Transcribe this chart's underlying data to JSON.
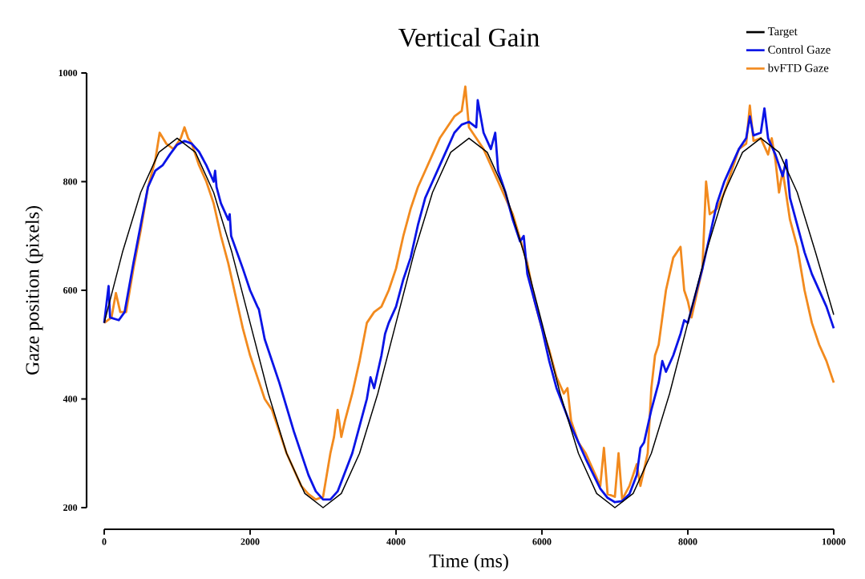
{
  "chart_data": {
    "type": "line",
    "title": "Vertical Gain",
    "xlabel": "Time (ms)",
    "ylabel": "Gaze position (pixels)",
    "xlim": [
      0,
      10000
    ],
    "ylim": [
      200,
      1000
    ],
    "xticks": [
      0,
      2000,
      4000,
      6000,
      8000,
      10000
    ],
    "yticks": [
      200,
      400,
      600,
      800,
      1000
    ],
    "legend": "top right",
    "grid": false,
    "marker": "none",
    "line_style": "solid",
    "series": [
      {
        "name": "Target",
        "color": "#000000",
        "x": [
          0,
          250,
          500,
          750,
          1000,
          1250,
          1500,
          1750,
          2000,
          2250,
          2500,
          2750,
          3000,
          3250,
          3500,
          3750,
          4000,
          4250,
          4500,
          4750,
          5000,
          5250,
          5500,
          5750,
          6000,
          6250,
          6500,
          6750,
          7000,
          7250,
          7500,
          7750,
          8000,
          8250,
          8500,
          8750,
          9000,
          9250,
          9500,
          9750,
          10000
        ],
        "values": [
          540,
          670,
          780,
          854,
          880,
          854,
          780,
          670,
          540,
          410,
          300,
          226,
          200,
          226,
          300,
          410,
          540,
          670,
          780,
          854,
          880,
          854,
          780,
          670,
          540,
          410,
          300,
          226,
          200,
          226,
          300,
          410,
          540,
          670,
          780,
          854,
          880,
          854,
          780,
          670,
          555
        ]
      },
      {
        "name": "Control Gaze",
        "color": "#0a14e6",
        "x": [
          0,
          60,
          80,
          200,
          280,
          400,
          500,
          600,
          700,
          800,
          900,
          1000,
          1100,
          1200,
          1300,
          1400,
          1500,
          1520,
          1540,
          1600,
          1700,
          1720,
          1740,
          1900,
          2000,
          2100,
          2120,
          2200,
          2400,
          2600,
          2800,
          2900,
          3000,
          3100,
          3200,
          3300,
          3400,
          3500,
          3600,
          3650,
          3700,
          3800,
          3850,
          3900,
          4000,
          4100,
          4200,
          4300,
          4400,
          4500,
          4600,
          4700,
          4800,
          4900,
          5000,
          5100,
          5120,
          5200,
          5300,
          5360,
          5400,
          5500,
          5600,
          5700,
          5750,
          5800,
          5900,
          6000,
          6100,
          6200,
          6400,
          6600,
          6800,
          6900,
          7000,
          7100,
          7200,
          7300,
          7350,
          7400,
          7500,
          7600,
          7650,
          7700,
          7800,
          7900,
          7950,
          8000,
          8100,
          8200,
          8300,
          8400,
          8500,
          8600,
          8700,
          8800,
          8850,
          8900,
          9000,
          9050,
          9100,
          9200,
          9300,
          9350,
          9400,
          9500,
          9600,
          9700,
          9800,
          9900,
          10000
        ],
        "values": [
          540,
          608,
          550,
          545,
          560,
          650,
          720,
          790,
          820,
          830,
          850,
          868,
          875,
          870,
          855,
          830,
          800,
          820,
          790,
          760,
          730,
          740,
          700,
          640,
          600,
          570,
          565,
          510,
          430,
          340,
          260,
          230,
          215,
          215,
          230,
          265,
          300,
          350,
          400,
          440,
          420,
          480,
          520,
          540,
          570,
          620,
          660,
          720,
          770,
          800,
          830,
          860,
          890,
          905,
          910,
          900,
          950,
          890,
          860,
          890,
          820,
          780,
          730,
          690,
          700,
          630,
          580,
          530,
          470,
          420,
          350,
          290,
          235,
          218,
          210,
          212,
          225,
          260,
          310,
          320,
          380,
          430,
          470,
          450,
          480,
          520,
          545,
          540,
          590,
          640,
          700,
          760,
          800,
          830,
          860,
          880,
          920,
          885,
          890,
          935,
          880,
          850,
          810,
          840,
          770,
          720,
          670,
          630,
          600,
          570,
          530
        ]
      },
      {
        "name": "bvFTD Gaze",
        "color": "#f28a1e",
        "x": [
          0,
          100,
          160,
          220,
          300,
          400,
          500,
          600,
          700,
          760,
          850,
          950,
          1050,
          1100,
          1150,
          1200,
          1300,
          1400,
          1500,
          1600,
          1700,
          1800,
          1900,
          2000,
          2100,
          2200,
          2300,
          2400,
          2500,
          2600,
          2700,
          2800,
          2900,
          3000,
          3050,
          3100,
          3150,
          3200,
          3250,
          3300,
          3400,
          3500,
          3600,
          3700,
          3800,
          3900,
          4000,
          4100,
          4200,
          4300,
          4400,
          4500,
          4600,
          4700,
          4800,
          4900,
          4950,
          5000,
          5100,
          5200,
          5400,
          5600,
          5800,
          5900,
          6000,
          6100,
          6200,
          6300,
          6350,
          6400,
          6500,
          6600,
          6700,
          6800,
          6850,
          6900,
          7000,
          7050,
          7100,
          7200,
          7300,
          7350,
          7400,
          7450,
          7500,
          7550,
          7600,
          7700,
          7800,
          7900,
          7950,
          8000,
          8050,
          8100,
          8200,
          8250,
          8300,
          8400,
          8500,
          8600,
          8700,
          8800,
          8850,
          8900,
          9000,
          9100,
          9150,
          9200,
          9250,
          9300,
          9400,
          9500,
          9600,
          9700,
          9800,
          9900,
          10000
        ],
        "values": [
          540,
          550,
          595,
          560,
          560,
          640,
          710,
          790,
          840,
          890,
          870,
          860,
          880,
          900,
          880,
          870,
          830,
          800,
          760,
          700,
          650,
          590,
          530,
          480,
          440,
          400,
          380,
          340,
          300,
          270,
          240,
          225,
          215,
          220,
          260,
          300,
          330,
          380,
          330,
          360,
          410,
          470,
          540,
          560,
          570,
          600,
          640,
          700,
          750,
          790,
          820,
          850,
          880,
          900,
          920,
          930,
          975,
          900,
          880,
          860,
          800,
          740,
          650,
          580,
          530,
          490,
          440,
          410,
          420,
          360,
          320,
          300,
          270,
          240,
          310,
          225,
          220,
          300,
          215,
          240,
          280,
          240,
          270,
          300,
          420,
          480,
          500,
          600,
          660,
          680,
          600,
          580,
          550,
          580,
          640,
          800,
          740,
          750,
          780,
          820,
          860,
          870,
          940,
          875,
          880,
          850,
          880,
          840,
          780,
          820,
          730,
          680,
          600,
          540,
          500,
          470,
          430
        ]
      }
    ]
  }
}
